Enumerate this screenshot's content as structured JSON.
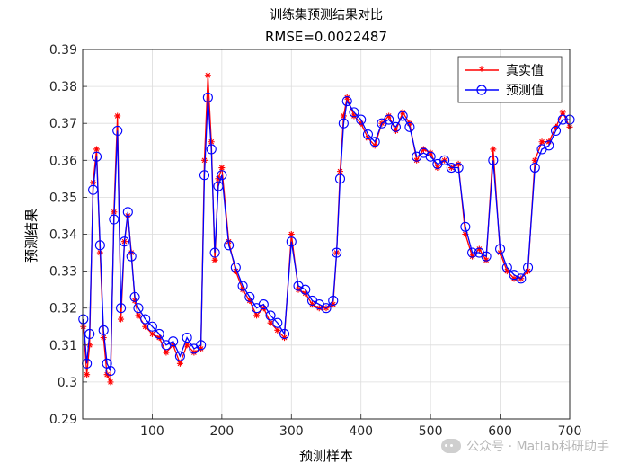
{
  "chart_data": {
    "type": "line",
    "title": "训练集预测结果对比",
    "subtitle": "RMSE=0.0022487",
    "xlabel": "预测样本",
    "ylabel": "预测结果",
    "xlim": [
      0,
      700
    ],
    "ylim": [
      0.29,
      0.39
    ],
    "xticks": [
      100,
      200,
      300,
      400,
      500,
      600,
      700
    ],
    "yticks": [
      0.29,
      0.3,
      0.31,
      0.32,
      0.33,
      0.34,
      0.35,
      0.36,
      0.37,
      0.38,
      0.39
    ],
    "xtick_labels": [
      "100",
      "200",
      "300",
      "400",
      "500",
      "600",
      "700"
    ],
    "ytick_labels": [
      "0.29",
      "0.3",
      "0.31",
      "0.32",
      "0.33",
      "0.34",
      "0.35",
      "0.36",
      "0.37",
      "0.38",
      "0.39"
    ],
    "grid": true,
    "legend_position": "top-right",
    "series": [
      {
        "name": "真实值",
        "color": "#ff0000",
        "marker": "asterisk"
      },
      {
        "name": "预测值",
        "color": "#0000ff",
        "marker": "circle"
      }
    ],
    "x": [
      1,
      6,
      10,
      15,
      20,
      25,
      30,
      35,
      40,
      45,
      50,
      55,
      60,
      65,
      70,
      75,
      80,
      90,
      100,
      110,
      120,
      130,
      140,
      150,
      160,
      170,
      175,
      180,
      185,
      190,
      195,
      200,
      210,
      220,
      230,
      240,
      250,
      260,
      270,
      280,
      290,
      300,
      310,
      320,
      330,
      340,
      350,
      360,
      365,
      370,
      375,
      380,
      390,
      400,
      410,
      420,
      430,
      440,
      450,
      460,
      470,
      480,
      490,
      500,
      510,
      520,
      530,
      540,
      550,
      560,
      570,
      580,
      590,
      600,
      610,
      620,
      630,
      640,
      650,
      660,
      670,
      680,
      690,
      700
    ],
    "true_values": [
      0.315,
      0.302,
      0.31,
      0.354,
      0.363,
      0.335,
      0.312,
      0.302,
      0.3,
      0.346,
      0.372,
      0.317,
      0.338,
      0.345,
      0.335,
      0.322,
      0.318,
      0.315,
      0.313,
      0.312,
      0.308,
      0.31,
      0.305,
      0.31,
      0.308,
      0.309,
      0.36,
      0.383,
      0.365,
      0.333,
      0.355,
      0.358,
      0.338,
      0.33,
      0.325,
      0.322,
      0.318,
      0.32,
      0.316,
      0.314,
      0.312,
      0.34,
      0.325,
      0.324,
      0.321,
      0.32,
      0.32,
      0.321,
      0.335,
      0.357,
      0.372,
      0.377,
      0.372,
      0.37,
      0.366,
      0.364,
      0.37,
      0.372,
      0.368,
      0.373,
      0.37,
      0.36,
      0.363,
      0.362,
      0.358,
      0.36,
      0.358,
      0.359,
      0.34,
      0.334,
      0.336,
      0.333,
      0.363,
      0.335,
      0.33,
      0.328,
      0.328,
      0.33,
      0.36,
      0.365,
      0.365,
      0.369,
      0.373,
      0.369
    ],
    "predicted_values": [
      0.317,
      0.305,
      0.313,
      0.352,
      0.361,
      0.337,
      0.314,
      0.305,
      0.303,
      0.344,
      0.368,
      0.32,
      0.338,
      0.346,
      0.334,
      0.323,
      0.32,
      0.317,
      0.315,
      0.313,
      0.31,
      0.311,
      0.307,
      0.312,
      0.309,
      0.31,
      0.356,
      0.377,
      0.363,
      0.335,
      0.353,
      0.356,
      0.337,
      0.331,
      0.326,
      0.323,
      0.32,
      0.321,
      0.318,
      0.316,
      0.313,
      0.338,
      0.326,
      0.325,
      0.322,
      0.321,
      0.32,
      0.322,
      0.335,
      0.355,
      0.37,
      0.376,
      0.373,
      0.371,
      0.367,
      0.365,
      0.37,
      0.371,
      0.369,
      0.372,
      0.369,
      0.361,
      0.362,
      0.361,
      0.359,
      0.36,
      0.358,
      0.358,
      0.342,
      0.335,
      0.335,
      0.334,
      0.36,
      0.336,
      0.331,
      0.329,
      0.328,
      0.331,
      0.358,
      0.363,
      0.364,
      0.368,
      0.371,
      0.371
    ]
  },
  "watermark": "公众号 · Matlab科研助手"
}
